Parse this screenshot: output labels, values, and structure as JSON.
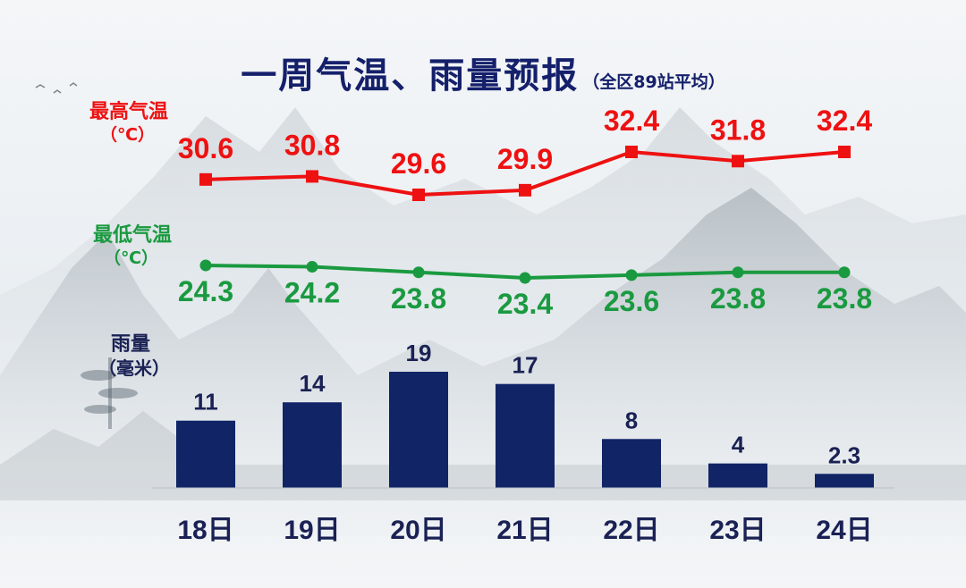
{
  "title": {
    "main": "一周气温、雨量预报",
    "sub": "（全区89站平均）"
  },
  "labels": {
    "high_temp": "最高气温",
    "high_temp_unit": "（℃）",
    "low_temp": "最低气温",
    "low_temp_unit": "（℃）",
    "rain": "雨量",
    "rain_unit": "（毫米）"
  },
  "colors": {
    "high": "#ee1111",
    "low": "#1a9a40",
    "bar": "#102466",
    "text_dark": "#1a2154"
  },
  "chart_data": {
    "type": "bar",
    "categories": [
      "18日",
      "19日",
      "20日",
      "21日",
      "22日",
      "23日",
      "24日"
    ],
    "series": [
      {
        "name": "最高气温",
        "type": "line",
        "values": [
          30.6,
          30.8,
          29.6,
          29.9,
          32.4,
          31.8,
          32.4
        ]
      },
      {
        "name": "最低气温",
        "type": "line",
        "values": [
          24.3,
          24.2,
          23.8,
          23.4,
          23.6,
          23.8,
          23.8
        ]
      },
      {
        "name": "雨量",
        "type": "bar",
        "values": [
          11,
          14,
          19,
          17,
          8,
          4,
          2.3
        ]
      }
    ],
    "grid": false,
    "legend": "none"
  }
}
